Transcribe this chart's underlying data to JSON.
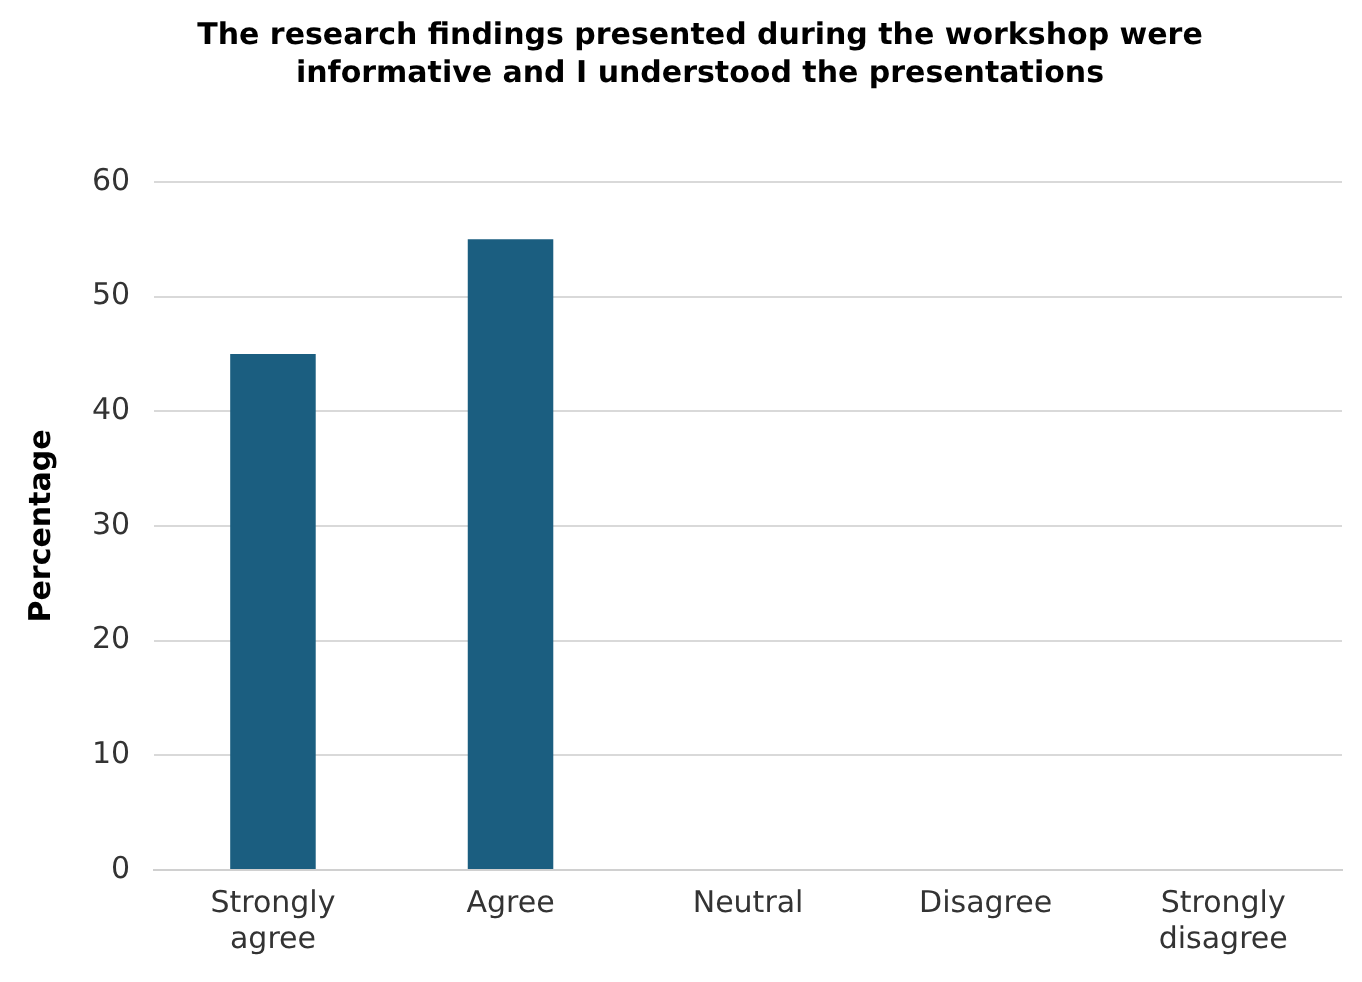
{
  "chart_data": {
    "type": "bar",
    "title": "The research findings presented during the workshop were informative and I understood the presentations",
    "ylabel": "Percentage",
    "categories": [
      "Strongly agree",
      "Agree",
      "Neutral",
      "Disagree",
      "Strongly disagree"
    ],
    "values": [
      45,
      55,
      0,
      0,
      0
    ],
    "color": "#1b5e80",
    "ylim": [
      0,
      60
    ],
    "yticks": [
      0,
      10,
      20,
      30,
      40,
      50,
      60
    ],
    "grid": "y"
  }
}
